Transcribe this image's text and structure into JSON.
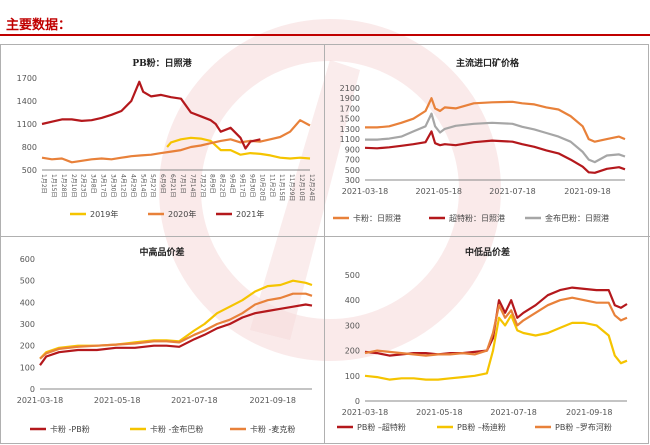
{
  "header": {
    "title": "主要数据："
  },
  "colors": {
    "accent": "#c00000",
    "dark_red": "#b4181c",
    "orange": "#e8813a",
    "yellow": "#f5c400",
    "gray": "#a6a6a6",
    "watermark": "#f6d9d9"
  },
  "chart_data": [
    {
      "type": "line",
      "title": "PB粉：日照港",
      "x_tick_labels": [
        "1月2日",
        "1月15日",
        "1月28日",
        "2月10日",
        "2月23日",
        "3月8日",
        "3月17日",
        "3月30日",
        "4月12日",
        "4月29日",
        "5月14日",
        "5月27日",
        "6月9日",
        "6月21日",
        "7月1日",
        "7月14日",
        "7月27日",
        "8月9日",
        "8月22日",
        "9月4日",
        "9月17日",
        "9月30日",
        "10月20日",
        "11月2日",
        "11月15日",
        "11月29日",
        "12月10日",
        "12月24日"
      ],
      "ylim": [
        500,
        1700
      ],
      "y_ticks": [
        500,
        800,
        1100,
        1400,
        1700
      ],
      "legend_position": "bottom",
      "series": [
        {
          "name": "2019年",
          "color": "#f5c400",
          "x": [
            12.6,
            13,
            14,
            15,
            16,
            17,
            18,
            19,
            20,
            21,
            22,
            23,
            24,
            25,
            26,
            27
          ],
          "values": [
            800,
            860,
            900,
            920,
            910,
            880,
            760,
            760,
            700,
            720,
            710,
            690,
            660,
            650,
            660,
            650
          ]
        },
        {
          "name": "2020年",
          "color": "#e8813a",
          "x": [
            0,
            1,
            2,
            3,
            4,
            5,
            6,
            7,
            8,
            9,
            10,
            11,
            12,
            13,
            14,
            15,
            16,
            17,
            18,
            19,
            20,
            21,
            22,
            23,
            24,
            25,
            26,
            27
          ],
          "values": [
            660,
            640,
            650,
            600,
            620,
            640,
            650,
            640,
            660,
            680,
            690,
            700,
            720,
            740,
            760,
            800,
            820,
            850,
            880,
            900,
            860,
            880,
            870,
            900,
            930,
            1000,
            1150,
            1080
          ]
        },
        {
          "name": "2021年",
          "color": "#b4181c",
          "x": [
            0,
            1,
            2,
            3,
            4,
            5,
            6,
            7,
            8,
            9,
            9.8,
            10.2,
            11,
            12,
            13,
            14,
            15,
            16,
            17,
            17.5,
            18,
            19,
            20,
            20.5,
            21,
            22
          ],
          "values": [
            1100,
            1130,
            1160,
            1160,
            1140,
            1150,
            1180,
            1220,
            1270,
            1400,
            1650,
            1520,
            1460,
            1480,
            1450,
            1430,
            1250,
            1200,
            1150,
            1100,
            1000,
            1050,
            920,
            780,
            870,
            900
          ]
        }
      ]
    },
    {
      "type": "line",
      "title": "主流进口矿价格",
      "x_tick_labels": [
        "2021-03-18",
        "2021-05-18",
        "2021-07-18",
        "2021-09-18"
      ],
      "x_ticks_pos": [
        0,
        61,
        122,
        184
      ],
      "xlim": [
        0,
        215
      ],
      "ylim": [
        300,
        2100
      ],
      "y_ticks": [
        300,
        500,
        700,
        900,
        1100,
        1300,
        1500,
        1700,
        1900,
        2100
      ],
      "legend_position": "bottom",
      "series": [
        {
          "name": "卡粉：日照港",
          "color": "#e8813a",
          "x": [
            0,
            10,
            20,
            30,
            40,
            50,
            55,
            58,
            62,
            66,
            75,
            90,
            105,
            122,
            130,
            140,
            150,
            160,
            170,
            180,
            185,
            190,
            200,
            210,
            215
          ],
          "values": [
            1330,
            1330,
            1350,
            1420,
            1500,
            1650,
            1900,
            1700,
            1650,
            1720,
            1700,
            1800,
            1820,
            1830,
            1800,
            1780,
            1720,
            1680,
            1550,
            1350,
            1100,
            1050,
            1100,
            1150,
            1100
          ]
        },
        {
          "name": "超特粉：日照港",
          "color": "#b4181c",
          "x": [
            0,
            10,
            20,
            30,
            40,
            50,
            55,
            58,
            62,
            66,
            75,
            90,
            105,
            122,
            130,
            140,
            150,
            160,
            170,
            180,
            185,
            190,
            200,
            210,
            215
          ],
          "values": [
            930,
            920,
            940,
            970,
            1000,
            1040,
            1250,
            1020,
            980,
            1000,
            980,
            1040,
            1070,
            1050,
            1000,
            950,
            880,
            820,
            700,
            560,
            450,
            440,
            520,
            550,
            510
          ]
        },
        {
          "name": "金布巴粉：日照港",
          "color": "#a6a6a6",
          "x": [
            0,
            10,
            20,
            30,
            40,
            50,
            55,
            58,
            62,
            66,
            75,
            90,
            105,
            122,
            130,
            140,
            150,
            160,
            170,
            180,
            185,
            190,
            200,
            210,
            215
          ],
          "values": [
            1090,
            1090,
            1110,
            1150,
            1250,
            1350,
            1600,
            1350,
            1230,
            1300,
            1360,
            1400,
            1420,
            1400,
            1340,
            1290,
            1220,
            1150,
            1050,
            850,
            700,
            650,
            780,
            800,
            760
          ]
        }
      ]
    },
    {
      "type": "line",
      "title": "中高品价差",
      "x_tick_labels": [
        "2021-03-18",
        "2021-05-18",
        "2021-07-18",
        "2021-09-18"
      ],
      "x_ticks_pos": [
        0,
        61,
        122,
        184
      ],
      "xlim": [
        0,
        215
      ],
      "ylim": [
        0,
        600
      ],
      "y_ticks": [
        0,
        100,
        200,
        300,
        400,
        500,
        600
      ],
      "legend_position": "bottom",
      "series": [
        {
          "name": "卡粉 -PB粉",
          "color": "#b4181c",
          "x": [
            0,
            5,
            15,
            30,
            45,
            60,
            75,
            90,
            100,
            110,
            122,
            130,
            140,
            150,
            160,
            170,
            180,
            190,
            200,
            210,
            215
          ],
          "values": [
            110,
            150,
            170,
            180,
            180,
            190,
            190,
            200,
            200,
            195,
            230,
            250,
            280,
            300,
            330,
            350,
            360,
            370,
            380,
            390,
            385
          ]
        },
        {
          "name": "卡粉 -金布巴粉",
          "color": "#f5c400",
          "x": [
            0,
            5,
            15,
            30,
            45,
            60,
            75,
            90,
            100,
            110,
            122,
            130,
            140,
            150,
            160,
            170,
            180,
            190,
            200,
            210,
            215
          ],
          "values": [
            140,
            170,
            190,
            200,
            200,
            205,
            215,
            225,
            225,
            220,
            270,
            300,
            350,
            380,
            410,
            450,
            475,
            480,
            500,
            490,
            480
          ]
        },
        {
          "name": "卡粉 -麦克粉",
          "color": "#e8813a",
          "x": [
            0,
            5,
            15,
            30,
            45,
            60,
            75,
            90,
            100,
            110,
            122,
            130,
            140,
            150,
            160,
            170,
            180,
            190,
            200,
            210,
            215
          ],
          "values": [
            140,
            165,
            185,
            195,
            200,
            205,
            210,
            220,
            220,
            215,
            250,
            270,
            300,
            320,
            350,
            390,
            410,
            420,
            440,
            440,
            430
          ]
        }
      ]
    },
    {
      "type": "line",
      "title": "中低品价差",
      "x_tick_labels": [
        "2021-03-18",
        "2021-05-18",
        "2021-07-18",
        "2021-09-18"
      ],
      "x_ticks_pos": [
        0,
        61,
        122,
        184
      ],
      "xlim": [
        0,
        215
      ],
      "ylim": [
        0,
        500
      ],
      "y_ticks": [
        0,
        100,
        200,
        300,
        400,
        500
      ],
      "legend_position": "bottom",
      "series": [
        {
          "name": "PB粉 –超特粉",
          "color": "#b4181c",
          "x": [
            0,
            10,
            20,
            30,
            40,
            50,
            60,
            70,
            80,
            90,
            100,
            105,
            110,
            115,
            120,
            125,
            130,
            140,
            150,
            160,
            170,
            180,
            190,
            200,
            205,
            210,
            215
          ],
          "values": [
            195,
            190,
            180,
            185,
            190,
            190,
            185,
            190,
            190,
            195,
            200,
            250,
            400,
            350,
            400,
            330,
            350,
            380,
            420,
            440,
            450,
            445,
            440,
            440,
            380,
            370,
            385
          ]
        },
        {
          "name": "PB粉 –杨迪粉",
          "color": "#f5c400",
          "x": [
            0,
            10,
            20,
            30,
            40,
            50,
            60,
            70,
            80,
            90,
            100,
            105,
            110,
            115,
            120,
            125,
            130,
            140,
            150,
            160,
            170,
            180,
            190,
            200,
            205,
            210,
            215
          ],
          "values": [
            100,
            95,
            85,
            90,
            90,
            85,
            85,
            90,
            95,
            100,
            110,
            200,
            330,
            300,
            340,
            280,
            270,
            260,
            270,
            290,
            310,
            310,
            300,
            260,
            180,
            150,
            160
          ]
        },
        {
          "name": "PB粉 –罗布河粉",
          "color": "#e8813a",
          "x": [
            0,
            10,
            20,
            30,
            40,
            50,
            60,
            70,
            80,
            90,
            100,
            105,
            110,
            115,
            120,
            125,
            130,
            140,
            150,
            160,
            170,
            180,
            190,
            200,
            205,
            210,
            215
          ],
          "values": [
            190,
            200,
            195,
            190,
            185,
            180,
            185,
            185,
            190,
            185,
            200,
            270,
            380,
            330,
            360,
            300,
            320,
            350,
            380,
            400,
            410,
            400,
            390,
            390,
            340,
            320,
            330
          ]
        }
      ]
    }
  ]
}
